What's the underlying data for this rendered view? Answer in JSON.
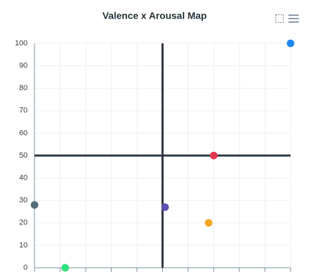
{
  "chart_data": {
    "type": "scatter",
    "title": "Valence x Arousal Map",
    "x": [
      0,
      12,
      51,
      68,
      70,
      100
    ],
    "values": [
      28,
      0,
      27,
      20,
      50,
      100
    ],
    "colors": [
      "#546e7a",
      "#2ee27f",
      "#5e4fb3",
      "#f6a623",
      "#e2364f",
      "#1e88f5"
    ],
    "xlim": [
      0,
      100
    ],
    "xticks": [
      0,
      10,
      20,
      30,
      40,
      50,
      60,
      70,
      80,
      90,
      100
    ],
    "ylim": [
      0,
      100
    ],
    "yticks": [
      0,
      10,
      20,
      30,
      40,
      50,
      60,
      70,
      80,
      90,
      100
    ],
    "grid": true,
    "reference_lines": {
      "x": 50,
      "y": 50,
      "color": "#2c3440"
    }
  }
}
